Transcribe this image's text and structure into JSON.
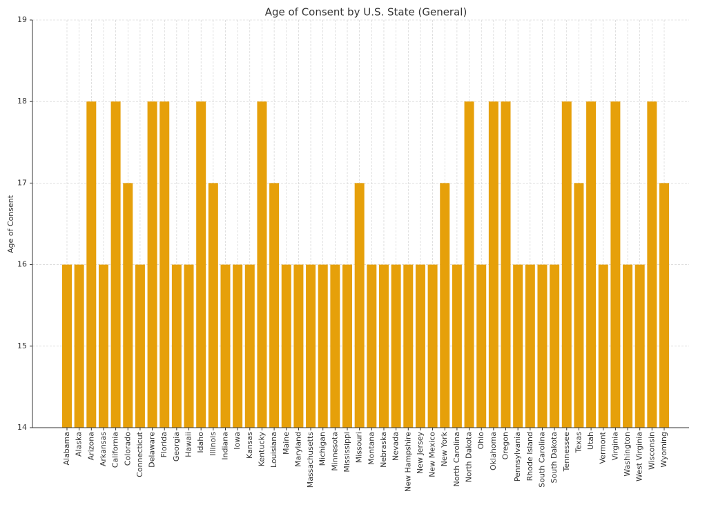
{
  "chart_data": {
    "type": "bar",
    "title": "Age of Consent by U.S. State (General)",
    "y_label": "Age of Consent",
    "categories": [
      "Alabama",
      "Alaska",
      "Arizona",
      "Arkansas",
      "California",
      "Colorado",
      "Connecticut",
      "Delaware",
      "Florida",
      "Georgia",
      "Hawaii",
      "Idaho",
      "Illinois",
      "Indiana",
      "Iowa",
      "Kansas",
      "Kentucky",
      "Louisiana",
      "Maine",
      "Maryland",
      "Massachusetts",
      "Michigan",
      "Minnesota",
      "Mississippi",
      "Missouri",
      "Montana",
      "Nebraska",
      "Nevada",
      "New Hampshire",
      "New Jersey",
      "New Mexico",
      "New York",
      "North Carolina",
      "North Dakota",
      "Ohio",
      "Oklahoma",
      "Oregon",
      "Pennsylvania",
      "Rhode Island",
      "South Carolina",
      "South Dakota",
      "Tennessee",
      "Texas",
      "Utah",
      "Vermont",
      "Virginia",
      "Washington",
      "West Virginia",
      "Wisconsin",
      "Wyoming"
    ],
    "values": [
      16,
      16,
      18,
      16,
      18,
      17,
      16,
      18,
      18,
      16,
      16,
      18,
      17,
      16,
      16,
      16,
      18,
      17,
      16,
      16,
      16,
      16,
      16,
      16,
      17,
      16,
      16,
      16,
      16,
      16,
      16,
      17,
      16,
      18,
      16,
      18,
      18,
      16,
      16,
      16,
      16,
      18,
      17,
      18,
      16,
      18,
      16,
      16,
      18,
      17
    ],
    "color": "#e6a00a",
    "ylim": [
      14,
      19
    ],
    "yticks": [
      14,
      15,
      16,
      17,
      18,
      19
    ],
    "grid": true
  }
}
